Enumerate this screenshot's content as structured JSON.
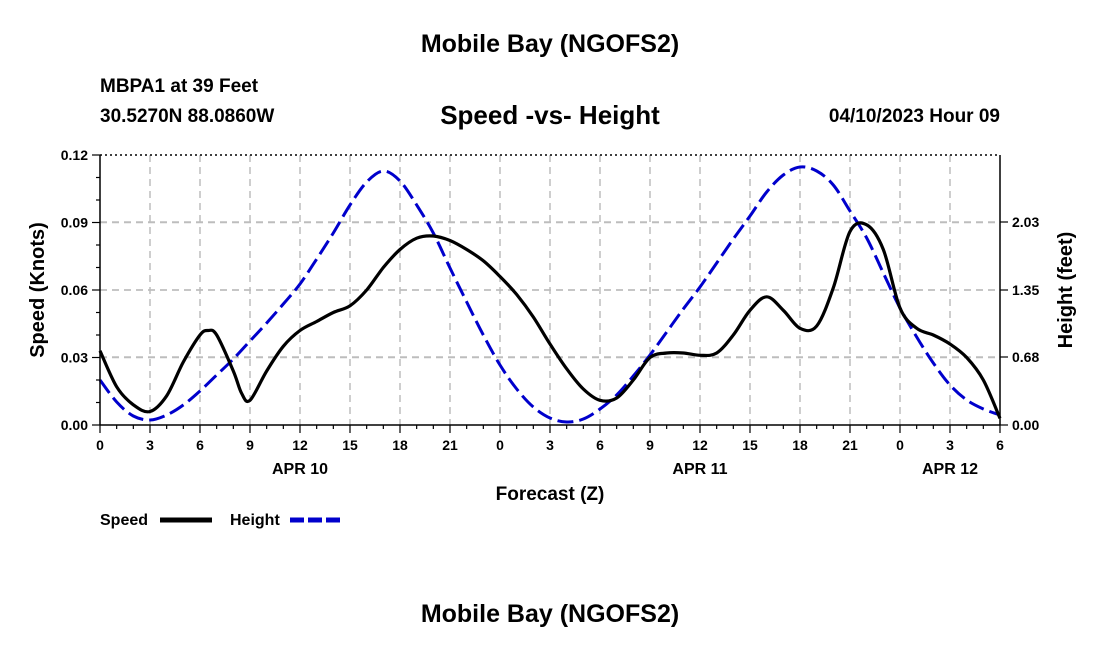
{
  "title": "Mobile Bay (NGOFS2)",
  "bottom_title": "Mobile Bay (NGOFS2)",
  "station_line": "MBPA1 at 39 Feet",
  "coords_line": "30.5270N  88.0860W",
  "datetime": "04/10/2023 Hour 09",
  "colors": {
    "speed": "#000000",
    "height": "#0000cc",
    "grid": "#bdbdbd"
  },
  "chart_data": {
    "type": "line",
    "title": "Speed -vs- Height",
    "xlabel": "Forecast (Z)",
    "ylabel": "Speed (Knots)",
    "y2label": "Height (feet)",
    "xlim": [
      0,
      54
    ],
    "x_units": "hours from 04/10/2023 00Z",
    "x_ticks": [
      0,
      3,
      6,
      9,
      12,
      15,
      18,
      21,
      24,
      27,
      30,
      33,
      36,
      39,
      42,
      45,
      48,
      51,
      54
    ],
    "x_tick_labels": [
      "0",
      "3",
      "6",
      "9",
      "12",
      "15",
      "18",
      "21",
      "0",
      "3",
      "6",
      "9",
      "12",
      "15",
      "18",
      "21",
      "0",
      "3",
      "6"
    ],
    "date_labels": [
      {
        "x": 12,
        "label": "APR 10"
      },
      {
        "x": 36,
        "label": "APR 11"
      },
      {
        "x": 51,
        "label": "APR 12"
      }
    ],
    "ylim": [
      0,
      0.12
    ],
    "y_ticks": [
      0.0,
      0.03,
      0.06,
      0.09,
      0.12
    ],
    "y_tick_labels": [
      "0.00",
      "0.03",
      "0.06",
      "0.09",
      "0.12"
    ],
    "y2lim": [
      0,
      2.7
    ],
    "y2_ticks": [
      0.0,
      0.68,
      1.35,
      2.03
    ],
    "y2_tick_labels": [
      "0.00",
      "0.68",
      "1.35",
      "2.03"
    ],
    "grid": true,
    "legend": "bottom-left",
    "series": [
      {
        "name": "Speed",
        "axis": "left",
        "style": "solid",
        "x": [
          0,
          1,
          2,
          3,
          4,
          5,
          6,
          6.5,
          7,
          8,
          8.5,
          9,
          10,
          11,
          12,
          13,
          14,
          15,
          16,
          17,
          18,
          19,
          20,
          21,
          22,
          23,
          24,
          25,
          26,
          27,
          28,
          29,
          30,
          31,
          32,
          33,
          34,
          35,
          36,
          37,
          38,
          39,
          40,
          41,
          42,
          43,
          44,
          45,
          46,
          47,
          48,
          49,
          50,
          51,
          52,
          53,
          54
        ],
        "values": [
          0.033,
          0.017,
          0.009,
          0.006,
          0.013,
          0.028,
          0.04,
          0.042,
          0.04,
          0.024,
          0.014,
          0.011,
          0.024,
          0.035,
          0.042,
          0.046,
          0.05,
          0.053,
          0.06,
          0.07,
          0.078,
          0.083,
          0.084,
          0.082,
          0.078,
          0.073,
          0.066,
          0.058,
          0.048,
          0.036,
          0.025,
          0.016,
          0.011,
          0.012,
          0.02,
          0.03,
          0.032,
          0.032,
          0.031,
          0.032,
          0.04,
          0.051,
          0.057,
          0.051,
          0.043,
          0.044,
          0.061,
          0.086,
          0.089,
          0.078,
          0.052,
          0.043,
          0.04,
          0.036,
          0.03,
          0.02,
          0.003
        ]
      },
      {
        "name": "Height",
        "axis": "right",
        "style": "dashed",
        "x": [
          0,
          1,
          2,
          3,
          4,
          5,
          6,
          7,
          8,
          9,
          10,
          11,
          12,
          13,
          14,
          15,
          16,
          17,
          18,
          19,
          20,
          21,
          22,
          23,
          24,
          25,
          26,
          27,
          28,
          29,
          30,
          31,
          32,
          33,
          34,
          35,
          36,
          37,
          38,
          39,
          40,
          41,
          42,
          43,
          44,
          45,
          46,
          47,
          48,
          49,
          50,
          51,
          52,
          53,
          54
        ],
        "values": [
          0.45,
          0.23,
          0.09,
          0.05,
          0.1,
          0.2,
          0.34,
          0.5,
          0.66,
          0.84,
          1.02,
          1.21,
          1.41,
          1.66,
          1.92,
          2.2,
          2.43,
          2.54,
          2.44,
          2.2,
          1.92,
          1.57,
          1.23,
          0.9,
          0.6,
          0.36,
          0.18,
          0.07,
          0.03,
          0.06,
          0.16,
          0.3,
          0.49,
          0.7,
          0.93,
          1.16,
          1.38,
          1.62,
          1.86,
          2.09,
          2.33,
          2.5,
          2.58,
          2.54,
          2.4,
          2.14,
          1.87,
          1.52,
          1.17,
          0.88,
          0.62,
          0.4,
          0.25,
          0.16,
          0.1
        ]
      }
    ]
  }
}
